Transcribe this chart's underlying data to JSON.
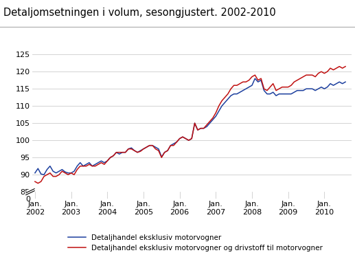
{
  "title": "Detaljomsetningen i volum, sesongjustert. 2002-2010",
  "title_fontsize": 10.5,
  "line1_color": "#1c3f9e",
  "line2_color": "#c01010",
  "line1_label": "Detaljhandel eksklusiv motorvogner",
  "line2_label": "Detaljhandel eksklusiv motorvogner og drivstoff til motorvogner",
  "line_width": 1.1,
  "grid_color": "#cccccc",
  "background_color": "#ffffff",
  "xtick_labels": [
    "Jan.\n2002",
    "Jan.\n2003",
    "Jan.\n2004",
    "Jan.\n2005",
    "Jan.\n2006",
    "Jan.\n2007",
    "Jan.\n2008",
    "Jan.\n2009",
    "Jan.\n2010"
  ],
  "xtick_positions": [
    0,
    12,
    24,
    36,
    48,
    60,
    72,
    84,
    96
  ],
  "ylim_main": [
    85,
    126
  ],
  "ylim_break": [
    0,
    2
  ],
  "yticks_main": [
    85,
    90,
    95,
    100,
    105,
    110,
    115,
    120,
    125
  ],
  "blue_series": [
    90.5,
    91.8,
    90.2,
    90.0,
    91.5,
    92.5,
    91.0,
    90.5,
    91.0,
    91.5,
    90.8,
    90.5,
    90.5,
    91.0,
    92.5,
    93.5,
    92.5,
    93.0,
    93.5,
    92.5,
    93.0,
    93.5,
    94.0,
    93.5,
    94.0,
    95.0,
    95.5,
    96.5,
    96.0,
    96.5,
    96.5,
    97.5,
    97.8,
    97.0,
    96.5,
    97.0,
    97.5,
    98.0,
    98.5,
    98.5,
    98.0,
    97.5,
    95.2,
    96.5,
    97.0,
    98.5,
    99.0,
    99.5,
    100.5,
    101.0,
    100.5,
    100.0,
    100.5,
    105.0,
    103.0,
    103.5,
    103.5,
    104.0,
    105.0,
    106.0,
    107.0,
    108.5,
    110.0,
    111.0,
    112.0,
    113.0,
    113.5,
    113.5,
    114.0,
    114.5,
    115.0,
    115.5,
    116.0,
    118.0,
    117.0,
    117.5,
    114.5,
    113.5,
    113.5,
    114.0,
    113.0,
    113.5,
    113.5,
    113.5,
    113.5,
    113.5,
    114.0,
    114.5,
    114.5,
    114.5,
    115.0,
    115.0,
    115.0,
    114.5,
    115.0,
    115.5,
    115.0,
    115.5,
    116.5,
    116.0,
    116.5,
    117.0,
    116.5,
    117.0
  ],
  "red_series": [
    88.0,
    87.5,
    88.0,
    89.5,
    90.0,
    90.5,
    89.5,
    89.5,
    90.0,
    91.0,
    90.5,
    90.0,
    90.5,
    90.0,
    91.5,
    92.5,
    92.5,
    92.5,
    93.0,
    92.5,
    92.5,
    93.0,
    93.5,
    93.0,
    94.0,
    95.0,
    95.5,
    96.5,
    96.5,
    96.5,
    96.5,
    97.5,
    97.5,
    97.0,
    96.5,
    96.8,
    97.5,
    98.0,
    98.5,
    98.5,
    97.5,
    97.0,
    95.0,
    96.5,
    97.0,
    98.5,
    98.5,
    99.5,
    100.5,
    101.0,
    100.5,
    100.0,
    100.5,
    105.0,
    103.0,
    103.5,
    103.5,
    104.5,
    105.5,
    106.5,
    108.0,
    110.0,
    111.5,
    112.5,
    113.5,
    115.0,
    116.0,
    116.0,
    116.5,
    117.0,
    117.0,
    117.5,
    118.5,
    119.0,
    117.5,
    118.0,
    115.0,
    114.5,
    115.5,
    116.5,
    114.5,
    115.0,
    115.5,
    115.5,
    115.5,
    116.0,
    117.0,
    117.5,
    118.0,
    118.5,
    119.0,
    119.0,
    119.0,
    118.5,
    119.5,
    120.0,
    119.5,
    120.0,
    121.0,
    120.5,
    121.0,
    121.5,
    121.0,
    121.5
  ]
}
